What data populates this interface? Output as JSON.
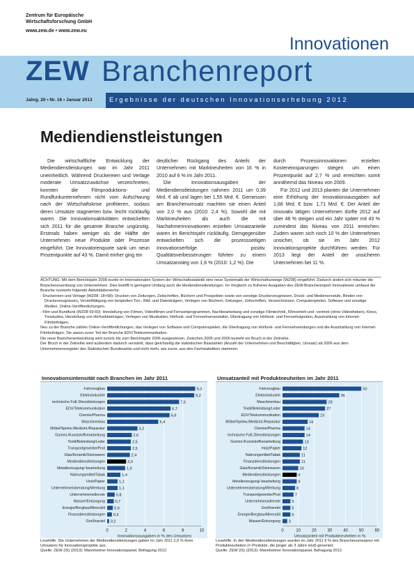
{
  "header": {
    "institute_line1": "Zentrum für Europäische",
    "institute_line2": "Wirtschaftsforschung GmbH",
    "institute_web": "www.zew.de • www.zew.eu",
    "logo_text": "ZEW",
    "series_title_top": "Innovationen",
    "series_title_main": "Branchenreport",
    "issue": "Jahrg. 20 • Nr. 16 • Januar 2013",
    "tagline": "Ergebnisse der deutschen Innovationserhebung 2012",
    "colors": {
      "dark_blue": "#1e4f8f",
      "light_blue": "#a9d3ec"
    }
  },
  "title": "Mediendienstleistungen",
  "body": {
    "col1": [
      "Die wirtschaftliche Entwicklung der Mediendienstleistungen war im Jahr 2011 uneinheitlich. Während Druckereien und Verlage moderate Umsatzzuwächse verzeichneten, konnten die Filmproduktions- und Rundfunkunternehmen nicht vom Aufschwung nach der Wirtschaftskrise profitieren, sodass deren Umsätze stagnierten bzw. leicht rückläufig waren. Die Innovationsaktivitäten entwickelten sich 2011 für die gesamte Branche ungünstig. Erstmals haben weniger als die Hälfte der Unternehmen neue Produkte oder Prozesse eingeführt. Die Innovatorenquote sank um neun Prozentpunkte auf 43 %. Damit einher ging ein"
    ],
    "col2": [
      "deutlicher Rückgang des Anteils der Unternehmen mit Marktneuheiten von 16 % in 2010 auf 6 % im Jahr 2011.",
      "Die Innovationsausgaben der Mediendienstleistungen nahmen 2011 um 0,39 Mrd. € ab und lagen bei 1,55 Mrd. €. Gemessen am Branchenumsatz machten sie einen Anteil von 2,0 % aus (2010: 2,4 %). Sowohl die mit Marktneuheiten als auch die mit Nachahmerinnovationen erzielten Umsatzanteile waren im Berichtsjahr rückläufig. Demgegenüber entwickelten sich die prozessseitigen Innovationserfolge positiv. Qualitätsverbesserungen führten zu einem Umsatzanstieg von 1,6 % (2010: 1,2 %). Die"
    ],
    "col3": [
      "durch Prozessinnovationen erzielten Kosteneinsparungen stiegen um einen Prozentpunkt auf 2,7 % und erreichten somit annähernd das Niveau von 2009.",
      "Für 2012 und 2013 planten die Unternehmen eine Erhöhung der Innovationsausgaben auf 1,68 Mrd. € bzw. 1,71 Mrd. €. Der Anteil der innovativ tätigen Unternehmen dürfte 2012 auf über 48 % steigen und ein Jahr später mit 43 % zumindest das Niveau von 2011 erreichen. Zudem waren sich noch 10 % der Unternehmen unsicher, ob sie im Jahr 2012 Innovationsprojekte durchführen werden. Für 2013 liegt der Anteil der unsicheren Unternehmen bei 11 %."
    ]
  },
  "note": {
    "intro": "ACHTUNG: Mit dem Berichtsjahr 2008 wurde im Internationalen System der Wirtschaftsstatistik eine neue Systematik der Wirtschaftszweige (WZ08) eingeführt. Dadurch ändert sich mitunter die Branchenzuordnung von Unternehmen. Dies betrifft in geringem Umfang auch die Mediendienstleistungen. Im Vergleich zu früheren Ausgaben des ZEW-Branchenreport Innovationen umfasst die Branche nunmehr folgende Aktivitätsbereiche:",
    "items": [
      "- Druckereien und Verlage (WZ08: 18+58): Drucken von Zeitungen, Zeitschriften, Büchern und Prospekten sowie von sonstige Druckerzeugnissen, Druck- und Medienvorstufe, Binden von Druckerzeugnissen, Vervielfältigung von bespielten Ton-, Bild- und Datenträgern, Verlegen von Büchern, Zeitungen, Zeitschriften, Verzeichnissen, Computerspielen, Software und sonstige Medien, Online-Veröffentlichungen.",
      "- Film und Rundfunk (WZ08 59-60): Herstellung von Filmen, Videofilmen und Fernsehprogrammen, Nachbearbeitung und sonstige Filmtechnik, Filmverleih und -vertrieb (ohne Videotheken), Kinos, Tonstudios, Herstellung von Hörfunkbeiträgen, Verlegen von Musikalien, Hörfunk- und Fernsehveranstalter, Übertragung von Hörfunk- und Fernsehsignalen, Ausstrahlung von Internet-Filmbeiträgen."
    ],
    "outro": [
      "Neu zu der Branche zählen Online-Veröffentlichungen, das Verlegen von Software und Computerspielen, die Übertragung von Hörfunk- und Fernsehsendungen und die Ausstrahlung von Internet-Filmbeiträgen. Sie waren zuvor Teil der Branche EDV/Telekommunikation.",
      "Die neue Branchenentwicklung wird zurück bis zum Berichtsjahr 2006 ausgewiesen. Zwischen 2005 und 2006 besteht ein Bruch in der Zeitreihe.",
      "Der Bruch in der Zeitreihe wird außerdem dadurch verstärkt, dass gleichzeitig die statistischen Basizahlen (Anzahl der Unternehmen und Beschäftigten, Umsatz) ab 2006 aus dem Unternehmensregister des Statistischen Bundesamts und nicht mehr, wie zuvor, aus den Fachstatistiken stammen."
    ]
  },
  "chart_data": [
    {
      "type": "bar",
      "orientation": "horizontal",
      "title": "Innovationsintensität nach Branchen im Jahr 2011",
      "xlabel": "Innovationsausgaben in % des Umsatzes",
      "xlim": [
        0,
        10
      ],
      "xticks": [
        0,
        2,
        4,
        6,
        8,
        10
      ],
      "categories": [
        "Fahrzeugbau",
        "Elektroindustrie",
        "technische FuE-Dienstleistungen",
        "EDV/Telekommunikation",
        "Chemie/Pharma",
        "Maschinenbau",
        "Möbel/Spielw./Medizint./Reparatur",
        "Gummi-/Kunststoffverarbeitung",
        "Textil/Bekleidung/Leder",
        "Transportgewerbe/Post",
        "Glas/Keramik/Steinwaren",
        "Mediendienstleistungen",
        "Metallerzeugung/-bearbeitung",
        "Nahrungsmittel/Tabak",
        "Holz/Papier",
        "Unternehmensberatung/Werbung",
        "Unternehmensdienste",
        "Wasser/Entsorgung",
        "Energie/Bergbau/Mineralöl",
        "Finanzdienstleistungen",
        "Großhandel"
      ],
      "values": [
        9.3,
        9.2,
        7.6,
        6.7,
        6.6,
        5.4,
        3.2,
        2.6,
        2.5,
        2.5,
        2.4,
        2.0,
        1.9,
        1.4,
        1.1,
        1.1,
        0.8,
        0.7,
        0.6,
        0.5,
        0.2
      ],
      "labels": [
        "9,3",
        "9,2",
        "7,6",
        "6,7",
        "6,6",
        "5,4",
        "3,2",
        "2,6",
        "2,5",
        "2,5",
        "2,4",
        "2,0",
        "1,9",
        "1,4",
        "1,1",
        "1,1",
        "0,8",
        "0,7",
        "0,6",
        "0,5",
        "0,2"
      ],
      "highlight": "Mediendienstleistungen",
      "bar_color": "#1e4f8f",
      "highlight_color": "#000000",
      "grid": true
    },
    {
      "type": "bar",
      "orientation": "horizontal",
      "title": "Umsatzanteil mit Produktneuheiten im Jahr 2011",
      "xlabel": "Umsatzanteil mit Produktneuheiten in %",
      "xlim": [
        0,
        60
      ],
      "xticks": [
        0,
        10,
        20,
        30,
        40,
        50,
        60
      ],
      "categories": [
        "Fahrzeugbau",
        "Elektroindustrie",
        "Maschinenbau",
        "Textil/Bekleidung/Leder",
        "EDV/Telekommunikation",
        "Möbel/Spielw./Medizint./Reparatur",
        "Chemie/Pharma",
        "technische FuE-Dienstleistungen",
        "Gummi-/Kunststoffverarbeitung",
        "Holz/Papier",
        "Nahrungsmittel/Tabak",
        "Finanzdienstleistungen",
        "Glas/Keramik/Steinwaren",
        "Mediendienstleistungen",
        "Metallerzeugung/-bearbeitung",
        "Unternehmensberatung/Werbung",
        "Transportgewerbe/Post",
        "Unternehmensdienste",
        "Großhandel",
        "Energie/Bergbau/Mineralöl",
        "Wasser/Entsorgung"
      ],
      "values": [
        50,
        36,
        28,
        27,
        23,
        16,
        14,
        14,
        13,
        12,
        11,
        11,
        10,
        9,
        9,
        8,
        7,
        5,
        5,
        5,
        3
      ],
      "labels": [
        "50",
        "36",
        "28",
        "27",
        "23",
        "16",
        "14",
        "14",
        "13",
        "12",
        "11",
        "11",
        "10",
        "9",
        "9",
        "8",
        "7",
        "5",
        "5",
        "5",
        "3"
      ],
      "highlight": "Mediendienstleistungen",
      "bar_color": "#1e4f8f",
      "highlight_color": "#000000",
      "grid": true
    }
  ],
  "captions": {
    "left": "Lesehilfe: Die Unternehmen der Mediendienstleistungen gaben im Jahr 2011 2,0 % ihres Umsatzes für Innovationsprojekte aus.",
    "left_source": "Quelle: ZEW (IS) (2013): Mannheimer Innovationspanel, Befragung 2012.",
    "right": "Lesehilfe: In den Mediendienstleistungen wurden im Jahr 2011 9 % des Branchenumsatzes mit Produktneuheiten (= Produkte, die jünger als 3 Jahre sind) generiert.",
    "right_source": "Quelle: ZEW (IS) (2013): Mannheimer Innovationspanel, Befragung 2012."
  }
}
